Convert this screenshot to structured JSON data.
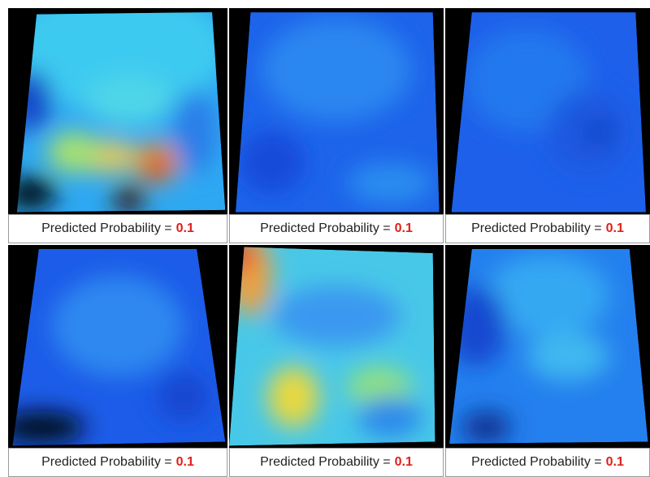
{
  "panels": [
    {
      "caption": "Predicted Probability =",
      "probability": 0.1
    },
    {
      "caption": "Predicted Probability =",
      "probability": 0.1
    },
    {
      "caption": "Predicted Probability =",
      "probability": 0.1
    },
    {
      "caption": "Predicted Probability =",
      "probability": 0.1
    },
    {
      "caption": "Predicted Probability =",
      "probability": 0.1
    },
    {
      "caption": "Predicted Probability =",
      "probability": 0.1
    }
  ]
}
